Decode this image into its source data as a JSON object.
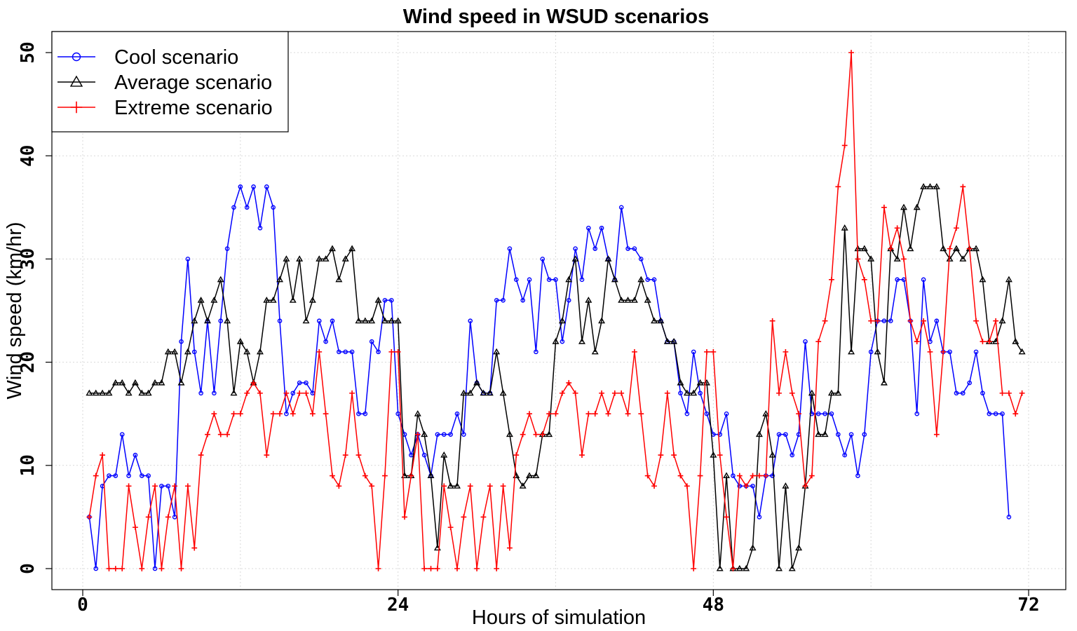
{
  "chart_data": {
    "type": "line",
    "title": "Wind speed in WSUD scenarios",
    "xlabel": "Hours of simulation",
    "ylabel": "Wind speed (km/hr)",
    "xlim": [
      0,
      72
    ],
    "ylim": [
      0,
      50
    ],
    "x_ticks": [
      0,
      24,
      48,
      72
    ],
    "y_ticks": [
      0,
      10,
      20,
      30,
      40,
      50
    ],
    "grid": true,
    "legend_position": "top-left",
    "x_start": 0.5,
    "x_step": 0.5,
    "series": [
      {
        "name": "Cool scenario",
        "color": "#0000ff",
        "marker": "circle",
        "values": [
          5,
          0,
          8,
          9,
          9,
          13,
          9,
          11,
          9,
          9,
          0,
          8,
          8,
          5,
          22,
          30,
          21,
          17,
          24,
          17,
          24,
          31,
          35,
          37,
          35,
          37,
          33,
          37,
          35,
          24,
          15,
          17,
          18,
          18,
          17,
          24,
          22,
          24,
          21,
          21,
          21,
          15,
          15,
          22,
          21,
          26,
          26,
          15,
          13,
          11,
          13,
          11,
          9,
          13,
          13,
          13,
          15,
          13,
          24,
          18,
          17,
          17,
          26,
          26,
          31,
          28,
          26,
          28,
          21,
          30,
          28,
          28,
          22,
          26,
          31,
          28,
          33,
          31,
          33,
          30,
          28,
          35,
          31,
          31,
          30,
          28,
          28,
          24,
          22,
          22,
          17,
          15,
          21,
          17,
          15,
          13,
          13,
          15,
          9,
          8,
          8,
          8,
          5,
          9,
          9,
          13,
          13,
          11,
          13,
          22,
          15,
          15,
          15,
          15,
          13,
          11,
          13,
          9,
          13,
          21,
          24,
          24,
          24,
          28,
          28,
          24,
          15,
          28,
          22,
          24,
          21,
          21,
          17,
          17,
          18,
          21,
          17,
          15,
          15,
          15,
          5
        ]
      },
      {
        "name": "Average scenario",
        "color": "#000000",
        "marker": "triangle",
        "values": [
          17,
          17,
          17,
          17,
          18,
          18,
          17,
          18,
          17,
          17,
          18,
          18,
          21,
          21,
          18,
          21,
          24,
          26,
          24,
          26,
          28,
          24,
          17,
          22,
          21,
          18,
          21,
          26,
          26,
          28,
          30,
          26,
          30,
          24,
          26,
          30,
          30,
          31,
          28,
          30,
          31,
          24,
          24,
          24,
          26,
          24,
          24,
          24,
          9,
          9,
          15,
          13,
          9,
          2,
          11,
          8,
          8,
          17,
          17,
          18,
          17,
          17,
          21,
          17,
          13,
          9,
          8,
          9,
          9,
          13,
          13,
          22,
          24,
          28,
          30,
          22,
          26,
          21,
          24,
          30,
          28,
          26,
          26,
          26,
          28,
          26,
          24,
          24,
          22,
          22,
          18,
          17,
          17,
          18,
          18,
          11,
          0,
          9,
          0,
          0,
          0,
          2,
          13,
          15,
          11,
          0,
          8,
          0,
          2,
          8,
          17,
          13,
          13,
          17,
          17,
          33,
          21,
          31,
          31,
          30,
          21,
          18,
          31,
          30,
          35,
          31,
          35,
          37,
          37,
          37,
          31,
          30,
          31,
          30,
          31,
          31,
          28,
          22,
          22,
          24,
          28,
          22,
          21
        ]
      },
      {
        "name": "Extreme scenario",
        "color": "#ff0000",
        "marker": "plus",
        "values": [
          5,
          9,
          11,
          0,
          0,
          0,
          8,
          4,
          0,
          5,
          8,
          0,
          5,
          8,
          0,
          8,
          2,
          11,
          13,
          15,
          13,
          13,
          15,
          15,
          17,
          18,
          17,
          11,
          15,
          15,
          17,
          15,
          17,
          17,
          15,
          21,
          15,
          9,
          8,
          11,
          17,
          11,
          9,
          8,
          0,
          9,
          21,
          21,
          5,
          9,
          13,
          0,
          0,
          0,
          8,
          4,
          0,
          5,
          8,
          0,
          5,
          8,
          0,
          8,
          2,
          11,
          13,
          15,
          13,
          13,
          15,
          15,
          17,
          18,
          17,
          11,
          15,
          15,
          17,
          15,
          17,
          17,
          15,
          21,
          15,
          9,
          8,
          11,
          17,
          11,
          9,
          8,
          0,
          9,
          21,
          21,
          11,
          5,
          0,
          9,
          8,
          9,
          9,
          9,
          24,
          17,
          21,
          17,
          15,
          8,
          9,
          22,
          24,
          28,
          37,
          41,
          50,
          30,
          28,
          24,
          24,
          35,
          31,
          33,
          30,
          24,
          22,
          24,
          21,
          13,
          21,
          31,
          33,
          37,
          31,
          24,
          22,
          22,
          24,
          17,
          17,
          15,
          17
        ]
      }
    ]
  }
}
